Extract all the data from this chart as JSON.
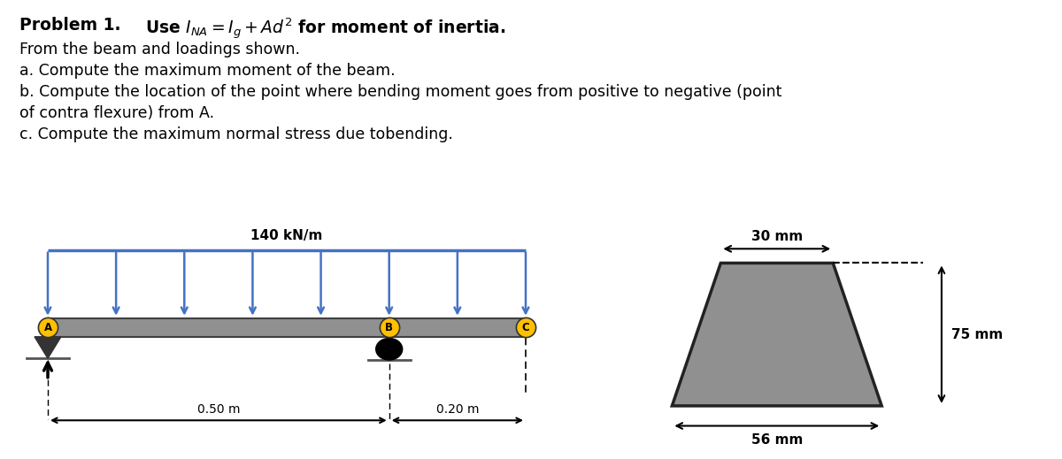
{
  "title_bold": "Problem 1.",
  "title_formula": "Use $I_{NA} = I_g + Ad^2$ for moment of inertia.",
  "line1": "From the beam and loadings shown.",
  "line2": "a. Compute the maximum moment of the beam.",
  "line3": "b. Compute the location of the point where bending moment goes from positive to negative (point",
  "line4": "of contra flexure) from A.",
  "line5": "c. Compute the maximum normal stress due tobending.",
  "load_label": "140 kN/m",
  "dist_AB": "0.50 m",
  "dist_BC": "0.20 m",
  "dim_top": "30 mm",
  "dim_height": "75 mm",
  "dim_bottom": "56 mm",
  "beam_color": "#909090",
  "arrow_color": "#4472C4",
  "support_color": "#808080",
  "label_color": "#FFC000",
  "trap_fill": "#909090",
  "bg_color": "#FFFFFF",
  "text_fontsize": 12.5,
  "title_fontsize": 13.5
}
